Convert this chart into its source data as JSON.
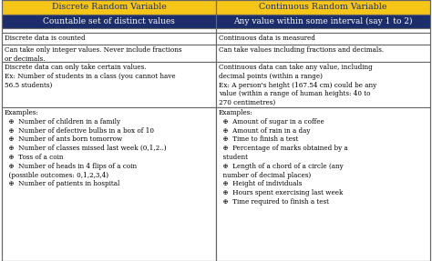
{
  "title_left": "Discrete Random Variable",
  "title_right": "Continuous Random Variable",
  "subtitle_left": "Countable set of distinct values",
  "subtitle_right": "Any value within some interval (say 1 to 2)",
  "title_bg": "#f5c518",
  "subtitle_bg": "#1b2d6b",
  "subtitle_fg": "#ffffff",
  "title_fg": "#1b2d6b",
  "header_font_size": 6.8,
  "body_font_size": 5.2,
  "bg_color": "#ffffff",
  "border_color": "#666666",
  "row0_left": "Discrete data is counted",
  "row0_right": "Continuous data is measured",
  "row1_left": "Can take only integer values. Never include fractions\nor decimals.",
  "row1_right": "Can take values including fractions and decimals.",
  "row2_left": "Discrete data can only take certain values.\nEx: Number of students in a class (you cannot have\n56.5 students)",
  "row2_right": "Continuous data can take any value, including\ndecimal points (within a range)\nEx: A person's height (167.54 cm) could be any\nvalue (within a range of human heights: 40 to\n270 centimetres)",
  "row3_left_header": "Examples:",
  "row3_left_items": [
    "Number of children in a family",
    "Number of defective bulbs in a box of 10",
    "Number of ants born tomorrow",
    "Number of classes missed last week (0,1,2..)",
    "Toss of a coin",
    "Number of heads in 4 flips of a coin\n  (possible outcomes: 0,1,2,3,4)",
    "Number of patients in hospital"
  ],
  "row3_right_header": "Examples:",
  "row3_right_items": [
    "Amount of sugar in a coffee",
    "Amount of rain in a day",
    "Time to finish a test",
    "Percentage of marks obtained by a\n  student",
    "Length of a chord of a circle (any\n  number of decimal places)",
    "Height of individuals",
    "Hours spent exercising last week",
    "Time required to finish a test"
  ],
  "bullet": "⊕"
}
